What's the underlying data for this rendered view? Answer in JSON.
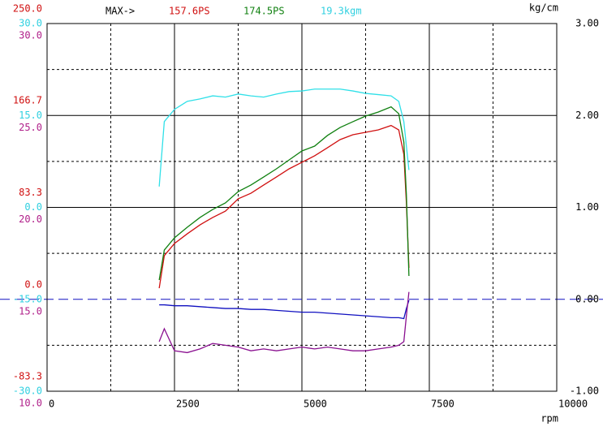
{
  "chart_data": {
    "type": "line",
    "header": "MAX->",
    "x_unit": "rpm",
    "right_unit": "kg/cm",
    "xlim": [
      0,
      10000
    ],
    "xticks": [
      0,
      2500,
      5000,
      7500,
      10000
    ],
    "xminor": [
      1250,
      3750,
      6250,
      8750
    ],
    "axes": {
      "ps": {
        "color": "#d01010",
        "ylim": [
          -83.3,
          250
        ],
        "yticks": [
          {
            "value": -83.3,
            "label": "-83.3"
          },
          {
            "value": 0,
            "label": "0.0"
          },
          {
            "value": 83.3,
            "label": "83.3"
          },
          {
            "value": 166.7,
            "label": "166.7"
          },
          {
            "value": 250,
            "label": "250.0"
          }
        ]
      },
      "kgm": {
        "color": "#30d0e0",
        "ylim": [
          -30,
          30
        ],
        "yticks": [
          {
            "value": -30,
            "label": "-30.0"
          },
          {
            "value": -15,
            "label": "-15.0"
          },
          {
            "value": 0,
            "label": "0.0"
          },
          {
            "value": 15,
            "label": "15.0"
          },
          {
            "value": 30,
            "label": "30.0"
          }
        ]
      },
      "afr": {
        "color": "#b0208a",
        "ylim": [
          10,
          30
        ],
        "yticks": [
          {
            "value": 10,
            "label": "10.0"
          },
          {
            "value": 15,
            "label": "15.0"
          },
          {
            "value": 20,
            "label": "20.0"
          },
          {
            "value": 25,
            "label": "25.0"
          },
          {
            "value": 30,
            "label": "30.0"
          }
        ]
      },
      "boost": {
        "color": "#000000",
        "ylim": [
          -1,
          3
        ],
        "yticks": [
          {
            "value": -1,
            "label": "-1.00"
          },
          {
            "value": 0,
            "label": "0.00"
          },
          {
            "value": 1,
            "label": "1.00"
          },
          {
            "value": 2,
            "label": "2.00"
          },
          {
            "value": 3,
            "label": "3.00"
          }
        ],
        "yminor": [
          -0.5,
          0.5,
          1.5,
          2.5
        ],
        "zero_color": "#1010c0"
      }
    },
    "x": [
      2200,
      2300,
      2500,
      2750,
      3000,
      3250,
      3500,
      3750,
      4000,
      4250,
      4500,
      4750,
      5000,
      5250,
      5500,
      5750,
      6000,
      6250,
      6500,
      6750,
      6900,
      7000,
      7050,
      7100
    ],
    "series": [
      {
        "axis": "ps",
        "color": "#d01010",
        "max_label": "157.6PS",
        "values": [
          10.1,
          39.6,
          50.6,
          59.4,
          67.5,
          74.2,
          80,
          91.1,
          96.2,
          103.6,
          110.9,
          118.3,
          124.2,
          130.1,
          137.4,
          144.8,
          149.2,
          151.4,
          153.6,
          157.6,
          153.6,
          131.5,
          87.4,
          28.5
        ]
      },
      {
        "axis": "ps",
        "color": "#108010",
        "max_label": "174.5PS",
        "values": [
          17.5,
          44.7,
          55.8,
          65.3,
          74.2,
          81.5,
          87.4,
          97.7,
          103.6,
          110.9,
          118.3,
          126.4,
          134.5,
          138.9,
          148.5,
          155.8,
          161,
          166.1,
          169.8,
          174.5,
          168.3,
          142.6,
          94.8,
          21.2
        ]
      },
      {
        "axis": "kgm",
        "color": "#30e0e8",
        "max_label": "19.3kgm",
        "values": [
          3.4,
          14,
          16,
          17.3,
          17.7,
          18.2,
          18,
          18.5,
          18.2,
          18,
          18.5,
          18.9,
          19,
          19.3,
          19.3,
          19.3,
          19,
          18.6,
          18.4,
          18.2,
          17.3,
          14,
          10,
          6.1
        ]
      },
      {
        "axis": "boost",
        "color": "#1010c0",
        "values": [
          -0.06,
          -0.06,
          -0.07,
          -0.07,
          -0.08,
          -0.09,
          -0.1,
          -0.1,
          -0.11,
          -0.11,
          -0.12,
          -0.13,
          -0.14,
          -0.14,
          -0.15,
          -0.16,
          -0.17,
          -0.18,
          -0.19,
          -0.2,
          -0.2,
          -0.21,
          -0.1,
          -0.01
        ]
      },
      {
        "axis": "afr",
        "color": "#8a1090",
        "values": [
          12.7,
          13.4,
          12.2,
          12.1,
          12.3,
          12.6,
          12.5,
          12.4,
          12.2,
          12.3,
          12.2,
          12.3,
          12.4,
          12.3,
          12.4,
          12.3,
          12.2,
          12.2,
          12.3,
          12.4,
          12.5,
          12.7,
          14.1,
          15.4
        ]
      }
    ]
  }
}
